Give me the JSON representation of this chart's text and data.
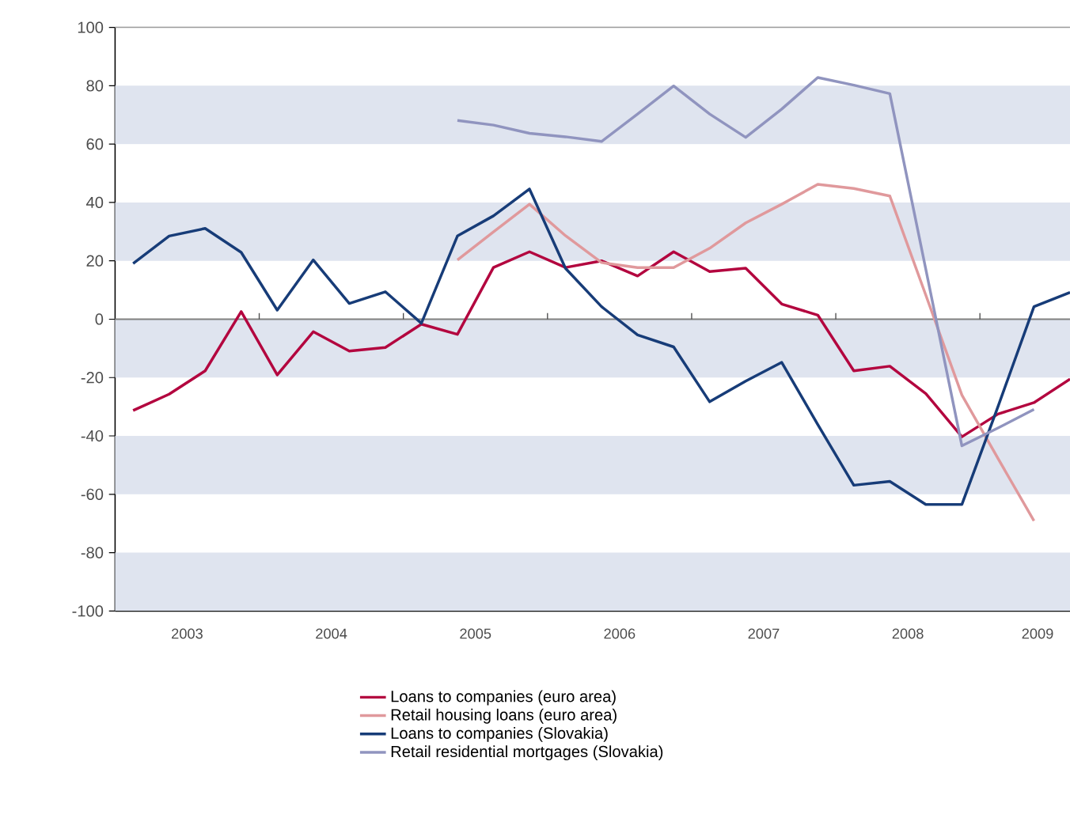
{
  "chart_data": {
    "type": "line",
    "x": [
      2003.125,
      2003.375,
      2003.625,
      2003.875,
      2004.125,
      2004.375,
      2004.625,
      2004.875,
      2005.125,
      2005.375,
      2005.625,
      2005.875,
      2006.125,
      2006.375,
      2006.625,
      2006.875,
      2007.125,
      2007.375,
      2007.625,
      2007.875,
      2008.125,
      2008.375,
      2008.625,
      2008.875,
      2009.125,
      2009.375,
      2009.625
    ],
    "series": [
      {
        "name": "Loans to companies (euro area)",
        "color": "#b3063f",
        "values": [
          -31.3,
          -25.7,
          -17.7,
          2.6,
          -19.1,
          -4.3,
          -10.9,
          -9.7,
          -1.7,
          -5.2,
          17.7,
          23.1,
          17.7,
          20,
          14.8,
          23.1,
          16.3,
          17.5,
          5.2,
          1.4,
          -17.7,
          -16.1,
          -25.5,
          -40.3,
          -32.5,
          -28.6,
          -20.5
        ]
      },
      {
        "name": "Retail housing loans (euro area)",
        "color": "#e0999c",
        "values": [
          null,
          null,
          null,
          null,
          null,
          null,
          null,
          null,
          null,
          20.3,
          29.9,
          39.4,
          28.6,
          19.4,
          17.7,
          17.7,
          24.3,
          33,
          39.4,
          46.2,
          44.8,
          42.2,
          8.2,
          -26,
          -47.7,
          -69.1,
          null
        ]
      },
      {
        "name": "Loans to companies (Slovakia)",
        "color": "#173c78",
        "values": [
          19.1,
          28.5,
          31.1,
          22.9,
          3.1,
          20.3,
          5.4,
          9.4,
          -1.4,
          28.5,
          35.4,
          44.6,
          17.4,
          4.3,
          -5.4,
          -9.5,
          -28.3,
          -21.2,
          -14.8,
          -36.1,
          -56.9,
          -55.6,
          -63.5,
          -63.5,
          -30,
          4.3,
          9.2
        ]
      },
      {
        "name": "Retail residential mortgages (Slovakia)",
        "color": "#9094bf",
        "values": [
          null,
          null,
          null,
          null,
          null,
          null,
          null,
          null,
          null,
          68.1,
          66.5,
          63.7,
          62.5,
          60.9,
          70.3,
          79.9,
          70.3,
          62.3,
          72,
          82.8,
          80.2,
          77.3,
          17,
          -43.4,
          -37.3,
          -30.9,
          null
        ]
      }
    ],
    "xlim": [
      2003,
      2009.625
    ],
    "xticks": [
      {
        "value": 2003.5,
        "label": "2003"
      },
      {
        "value": 2004,
        "label": null
      },
      {
        "value": 2004.5,
        "label": "2004"
      },
      {
        "value": 2005,
        "label": null
      },
      {
        "value": 2005.5,
        "label": "2005"
      },
      {
        "value": 2006,
        "label": null
      },
      {
        "value": 2006.5,
        "label": "2006"
      },
      {
        "value": 2007,
        "label": null
      },
      {
        "value": 2007.5,
        "label": "2007"
      },
      {
        "value": 2008,
        "label": null
      },
      {
        "value": 2008.5,
        "label": "2008"
      },
      {
        "value": 2009,
        "label": null
      },
      {
        "value": 2009.4,
        "label": "2009"
      }
    ],
    "ylim": [
      -100,
      100
    ],
    "yticks": [
      -100,
      -80,
      -60,
      -40,
      -20,
      0,
      20,
      40,
      60,
      80,
      100
    ],
    "bands": [
      {
        "axis": "y",
        "from": 60,
        "to": 80,
        "color": "#dfe4ef"
      },
      {
        "axis": "y",
        "from": 20,
        "to": 40,
        "color": "#dfe4ef"
      },
      {
        "axis": "y",
        "from": -20,
        "to": 0,
        "color": "#dfe4ef"
      },
      {
        "axis": "y",
        "from": -60,
        "to": -40,
        "color": "#dfe4ef"
      },
      {
        "axis": "y",
        "from": -100,
        "to": -80,
        "color": "#dfe4ef"
      }
    ],
    "ref_lines": [
      {
        "axis": "y",
        "value": 0,
        "color": "#808080"
      }
    ],
    "legend": "bottom",
    "marker": "none",
    "line_style": "solid",
    "grid": false
  }
}
